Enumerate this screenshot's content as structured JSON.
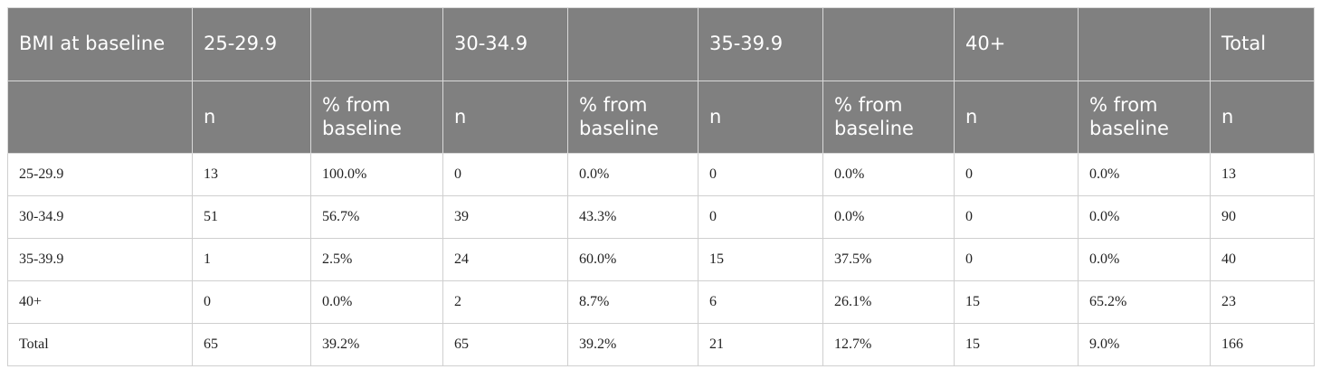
{
  "table": {
    "header_top": [
      "BMI at baseline",
      "25-29.9",
      "30-34.9",
      "35-39.9",
      "40+",
      "Total"
    ],
    "header_sub": [
      "n",
      "% from baseline",
      "n",
      "% from baseline",
      "n",
      "% from baseline",
      "n",
      "% from baseline",
      "n"
    ],
    "rows": [
      [
        "25-29.9",
        "13",
        "100.0%",
        "0",
        "0.0%",
        "0",
        "0.0%",
        "0",
        "0.0%",
        "13"
      ],
      [
        "30-34.9",
        "51",
        "56.7%",
        "39",
        "43.3%",
        "0",
        "0.0%",
        "0",
        "0.0%",
        "90"
      ],
      [
        "35-39.9",
        "1",
        "2.5%",
        "24",
        "60.0%",
        "15",
        "37.5%",
        "0",
        "0.0%",
        "40"
      ],
      [
        "40+",
        "0",
        "0.0%",
        "2",
        "8.7%",
        "6",
        "26.1%",
        "15",
        "65.2%",
        "23"
      ],
      [
        "Total",
        "65",
        "39.2%",
        "65",
        "39.2%",
        "21",
        "12.7%",
        "15",
        "9.0%",
        "166"
      ]
    ]
  }
}
